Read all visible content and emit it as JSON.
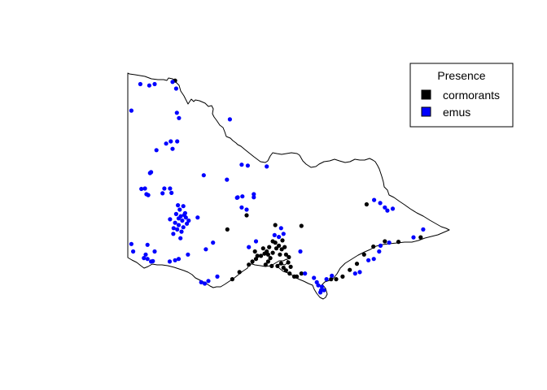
{
  "map": {
    "region": "Victoria",
    "background": "#ffffff",
    "outline_color": "#000000"
  },
  "legend": {
    "title": "Presence",
    "position": "top-right",
    "entries": [
      {
        "label": "cormorants",
        "color": "#000000"
      },
      {
        "label": "emus",
        "color": "#0000ff"
      }
    ]
  },
  "chart_data": {
    "type": "scatter",
    "series": [
      {
        "name": "cormorants",
        "color": "#000000",
        "points": [
          [
            142.32,
            -34.17
          ],
          [
            145.12,
            -37.45
          ],
          [
            145.85,
            -37.47
          ],
          [
            147.67,
            -36.98
          ],
          [
            144.32,
            -37.23
          ],
          [
            143.78,
            -37.55
          ],
          [
            144.85,
            -38.35
          ],
          [
            144.92,
            -38.28
          ],
          [
            145.02,
            -38.38
          ],
          [
            144.98,
            -38.2
          ],
          [
            144.72,
            -38.15
          ],
          [
            144.88,
            -38.05
          ],
          [
            144.95,
            -37.95
          ],
          [
            144.78,
            -37.98
          ],
          [
            144.82,
            -38.1
          ],
          [
            144.62,
            -38.15
          ],
          [
            144.55,
            -38.05
          ],
          [
            144.58,
            -38.22
          ],
          [
            144.92,
            -38.12
          ],
          [
            145.05,
            -38.08
          ],
          [
            145.15,
            -37.98
          ],
          [
            145.22,
            -37.92
          ],
          [
            145.3,
            -38.0
          ],
          [
            145.12,
            -37.85
          ],
          [
            145.05,
            -37.82
          ],
          [
            145.32,
            -37.8
          ],
          [
            145.38,
            -37.95
          ],
          [
            145.42,
            -38.12
          ],
          [
            145.18,
            -38.38
          ],
          [
            145.28,
            -38.32
          ],
          [
            145.35,
            -38.42
          ],
          [
            145.42,
            -38.48
          ],
          [
            145.52,
            -38.55
          ],
          [
            145.65,
            -38.62
          ],
          [
            145.72,
            -38.62
          ],
          [
            145.85,
            -38.55
          ],
          [
            146.68,
            -38.68
          ],
          [
            146.82,
            -38.68
          ],
          [
            147.0,
            -38.62
          ],
          [
            147.2,
            -38.47
          ],
          [
            147.4,
            -38.33
          ],
          [
            147.6,
            -38.12
          ],
          [
            147.86,
            -37.94
          ],
          [
            148.18,
            -37.82
          ],
          [
            148.56,
            -37.83
          ],
          [
            149.18,
            -37.73
          ],
          [
            143.92,
            -38.68
          ],
          [
            144.12,
            -38.52
          ],
          [
            144.38,
            -38.35
          ],
          [
            144.48,
            -38.28
          ],
          [
            145.55,
            -38.4
          ],
          [
            145.48,
            -38.3
          ],
          [
            145.5,
            -38.18
          ],
          [
            145.25,
            -38.12
          ]
        ]
      },
      {
        "name": "emus",
        "color": "#0000ff",
        "points": [
          [
            141.35,
            -34.25
          ],
          [
            141.6,
            -34.28
          ],
          [
            141.75,
            -34.25
          ],
          [
            142.25,
            -34.2
          ],
          [
            142.35,
            -34.35
          ],
          [
            141.1,
            -34.85
          ],
          [
            142.37,
            -34.9
          ],
          [
            142.43,
            -35.02
          ],
          [
            143.85,
            -35.05
          ],
          [
            142.07,
            -35.6
          ],
          [
            142.2,
            -35.55
          ],
          [
            142.38,
            -35.55
          ],
          [
            142.25,
            -35.72
          ],
          [
            141.8,
            -35.75
          ],
          [
            144.35,
            -36.1
          ],
          [
            141.65,
            -36.25
          ],
          [
            141.62,
            -36.27
          ],
          [
            143.77,
            -36.42
          ],
          [
            141.38,
            -36.63
          ],
          [
            141.48,
            -36.62
          ],
          [
            141.52,
            -36.75
          ],
          [
            141.57,
            -36.77
          ],
          [
            142.18,
            -36.62
          ],
          [
            142.22,
            -36.72
          ],
          [
            141.97,
            -36.73
          ],
          [
            142.02,
            -36.62
          ],
          [
            144.05,
            -36.83
          ],
          [
            144.07,
            -36.82
          ],
          [
            144.2,
            -36.8
          ],
          [
            144.52,
            -36.75
          ],
          [
            144.52,
            -36.82
          ],
          [
            144.18,
            -37.05
          ],
          [
            144.32,
            -37.1
          ],
          [
            142.4,
            -37.0
          ],
          [
            142.55,
            -37.02
          ],
          [
            142.35,
            -37.2
          ],
          [
            142.45,
            -37.1
          ],
          [
            142.6,
            -37.18
          ],
          [
            142.48,
            -37.25
          ],
          [
            142.62,
            -37.28
          ],
          [
            142.42,
            -37.3
          ],
          [
            142.52,
            -37.35
          ],
          [
            142.32,
            -37.4
          ],
          [
            142.42,
            -37.45
          ],
          [
            142.28,
            -37.52
          ],
          [
            142.38,
            -37.55
          ],
          [
            142.55,
            -37.5
          ],
          [
            142.65,
            -37.42
          ],
          [
            142.7,
            -37.35
          ],
          [
            142.18,
            -37.32
          ],
          [
            142.58,
            -37.22
          ],
          [
            142.5,
            -37.6
          ],
          [
            142.27,
            -37.65
          ],
          [
            142.95,
            -37.28
          ],
          [
            142.47,
            -37.75
          ],
          [
            143.38,
            -37.85
          ],
          [
            143.18,
            -38.0
          ],
          [
            141.1,
            -37.88
          ],
          [
            141.15,
            -38.05
          ],
          [
            141.55,
            -37.9
          ],
          [
            141.75,
            -38.05
          ],
          [
            141.5,
            -38.12
          ],
          [
            141.45,
            -38.2
          ],
          [
            141.55,
            -38.22
          ],
          [
            141.65,
            -38.28
          ],
          [
            141.7,
            -38.27
          ],
          [
            142.17,
            -38.28
          ],
          [
            142.32,
            -38.25
          ],
          [
            142.42,
            -38.22
          ],
          [
            142.68,
            -38.12
          ],
          [
            144.58,
            -37.82
          ],
          [
            144.38,
            -37.95
          ],
          [
            145.28,
            -37.52
          ],
          [
            145.35,
            -37.65
          ],
          [
            145.1,
            -37.68
          ],
          [
            145.22,
            -37.72
          ],
          [
            145.82,
            -38.05
          ],
          [
            145.95,
            -38.55
          ],
          [
            146.2,
            -38.65
          ],
          [
            146.28,
            -38.75
          ],
          [
            146.32,
            -38.82
          ],
          [
            146.42,
            -38.85
          ],
          [
            146.4,
            -38.93
          ],
          [
            146.48,
            -38.93
          ],
          [
            146.38,
            -38.98
          ],
          [
            146.55,
            -38.68
          ],
          [
            146.7,
            -38.6
          ],
          [
            147.35,
            -38.55
          ],
          [
            147.48,
            -38.52
          ],
          [
            147.72,
            -38.25
          ],
          [
            147.87,
            -38.22
          ],
          [
            148.02,
            -38.05
          ],
          [
            148.06,
            -37.92
          ],
          [
            148.3,
            -37.85
          ],
          [
            148.98,
            -37.73
          ],
          [
            149.25,
            -37.55
          ],
          [
            147.88,
            -36.88
          ],
          [
            148.05,
            -36.95
          ],
          [
            148.18,
            -37.05
          ],
          [
            148.25,
            -37.12
          ],
          [
            148.4,
            -37.08
          ],
          [
            143.5,
            -38.62
          ],
          [
            143.05,
            -38.75
          ],
          [
            143.25,
            -38.72
          ],
          [
            143.15,
            -38.78
          ],
          [
            144.88,
            -36.12
          ],
          [
            143.12,
            -36.32
          ],
          [
            144.18,
            -36.08
          ]
        ]
      }
    ]
  }
}
